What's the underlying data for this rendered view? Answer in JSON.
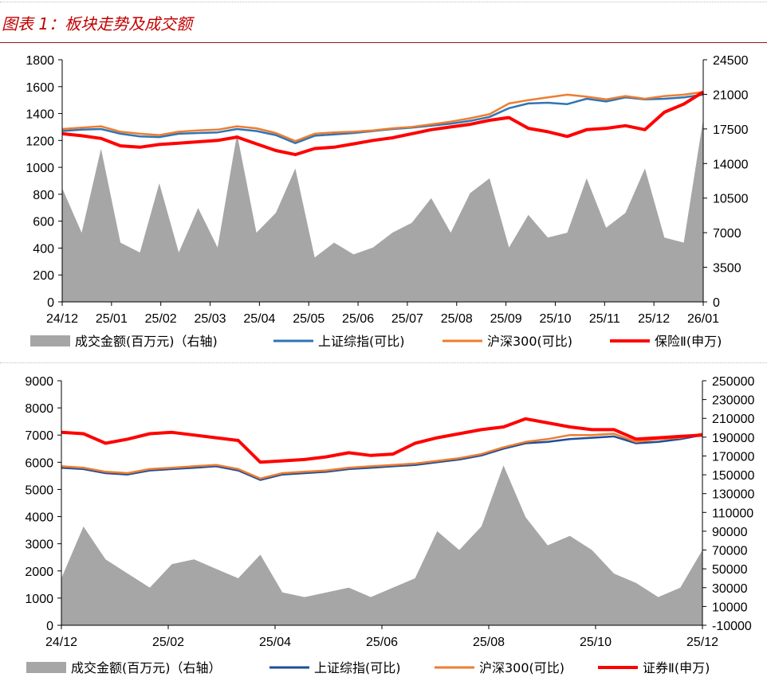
{
  "header": {
    "title": "图表 1：板块走势及成交额"
  },
  "colors": {
    "area": "#a6a6a6",
    "sh_index": "#2e75b6",
    "sh_index_b": "#1f4e9c",
    "csi300": "#ed7d31",
    "sector": "#ff0000",
    "title": "#c00000"
  },
  "chart_data": [
    {
      "type": "line",
      "title": "",
      "x_ticks": [
        "24/12",
        "25/01",
        "25/02",
        "25/03",
        "25/04",
        "25/05",
        "25/06",
        "25/07",
        "25/08",
        "25/09",
        "25/10",
        "25/11",
        "25/12",
        "26/01"
      ],
      "ylim_left": [
        0,
        1800
      ],
      "y_ticks_left": [
        "1800",
        "1600",
        "1400",
        "1200",
        "1000",
        "800",
        "600",
        "400",
        "200",
        "0"
      ],
      "ylim_right": [
        0,
        24500
      ],
      "y_ticks_right": [
        "24500",
        "21000",
        "17500",
        "14000",
        "10500",
        "7000",
        "3500",
        "0"
      ],
      "legend": [
        {
          "name": "成交金额(百万元)（右轴)",
          "kind": "area"
        },
        {
          "name": "上证综指(可比)",
          "kind": "line"
        },
        {
          "name": "沪深300(可比)",
          "kind": "line"
        },
        {
          "name": "保险Ⅱ(申万)",
          "kind": "line"
        }
      ],
      "series": [
        {
          "name": "上证综指(可比)",
          "axis": "left",
          "values": [
            1270,
            1280,
            1285,
            1250,
            1230,
            1225,
            1250,
            1255,
            1260,
            1285,
            1270,
            1240,
            1180,
            1235,
            1245,
            1255,
            1270,
            1285,
            1295,
            1310,
            1325,
            1345,
            1375,
            1440,
            1475,
            1480,
            1470,
            1510,
            1490,
            1520,
            1505,
            1510,
            1520,
            1540
          ]
        },
        {
          "name": "沪深300(可比)",
          "axis": "left",
          "values": [
            1285,
            1295,
            1305,
            1265,
            1250,
            1240,
            1265,
            1275,
            1280,
            1305,
            1290,
            1255,
            1195,
            1250,
            1260,
            1265,
            1275,
            1290,
            1300,
            1320,
            1340,
            1365,
            1395,
            1475,
            1500,
            1520,
            1540,
            1525,
            1505,
            1530,
            1510,
            1530,
            1540,
            1560
          ]
        },
        {
          "name": "保险Ⅱ(申万)",
          "axis": "left",
          "values": [
            1250,
            1235,
            1215,
            1160,
            1150,
            1170,
            1180,
            1190,
            1200,
            1225,
            1175,
            1125,
            1095,
            1140,
            1150,
            1175,
            1200,
            1220,
            1250,
            1280,
            1300,
            1320,
            1350,
            1370,
            1290,
            1265,
            1230,
            1280,
            1290,
            1310,
            1280,
            1410,
            1470,
            1560
          ]
        },
        {
          "name": "成交金额(百万元)（右轴)",
          "axis": "right",
          "values": [
            11500,
            7000,
            15500,
            6000,
            5000,
            12000,
            5000,
            9500,
            5500,
            17000,
            7000,
            9000,
            13500,
            4500,
            6000,
            4800,
            5500,
            7000,
            8000,
            10500,
            7000,
            11000,
            12500,
            5500,
            8800,
            6500,
            7000,
            12500,
            7500,
            9000,
            13500,
            6500,
            6000,
            18500
          ]
        }
      ]
    },
    {
      "type": "line",
      "title": "",
      "x_ticks": [
        "24/12",
        "25/02",
        "25/04",
        "25/06",
        "25/08",
        "25/10",
        "25/12"
      ],
      "ylim_left": [
        0,
        9000
      ],
      "y_ticks_left": [
        "9000",
        "8000",
        "7000",
        "6000",
        "5000",
        "4000",
        "3000",
        "2000",
        "1000",
        "0"
      ],
      "ylim_right": [
        -10000,
        250000
      ],
      "y_ticks_right": [
        "250000",
        "230000",
        "210000",
        "190000",
        "170000",
        "150000",
        "130000",
        "110000",
        "90000",
        "70000",
        "50000",
        "30000",
        "10000",
        "-10000"
      ],
      "legend": [
        {
          "name": "成交金额(百万元)（右轴）",
          "kind": "area"
        },
        {
          "name": "上证综指(可比)",
          "kind": "line"
        },
        {
          "name": "沪深300(可比)",
          "kind": "line"
        },
        {
          "name": "证券Ⅱ(申万)",
          "kind": "line"
        }
      ],
      "series": [
        {
          "name": "上证综指(可比)",
          "axis": "left",
          "values": [
            5800,
            5750,
            5600,
            5550,
            5700,
            5750,
            5800,
            5850,
            5700,
            5350,
            5550,
            5600,
            5650,
            5750,
            5800,
            5850,
            5900,
            6000,
            6100,
            6250,
            6500,
            6700,
            6750,
            6850,
            6900,
            6950,
            6700,
            6750,
            6850,
            7000
          ]
        },
        {
          "name": "沪深300(可比)",
          "axis": "left",
          "values": [
            5850,
            5800,
            5650,
            5600,
            5750,
            5800,
            5850,
            5900,
            5750,
            5400,
            5600,
            5650,
            5700,
            5800,
            5850,
            5900,
            5950,
            6050,
            6150,
            6300,
            6550,
            6750,
            6850,
            7000,
            7000,
            7050,
            6750,
            6850,
            6900,
            7050
          ]
        },
        {
          "name": "证券Ⅱ(申万)",
          "axis": "left",
          "values": [
            7100,
            7050,
            6700,
            6850,
            7050,
            7100,
            7000,
            6900,
            6800,
            6000,
            6050,
            6100,
            6200,
            6350,
            6250,
            6300,
            6700,
            6900,
            7050,
            7200,
            7300,
            7600,
            7450,
            7300,
            7200,
            7200,
            6850,
            6900,
            6950,
            7000
          ]
        },
        {
          "name": "成交金额(百万元)（右轴）",
          "axis": "right",
          "values": [
            40000,
            95000,
            60000,
            45000,
            30000,
            55000,
            60000,
            50000,
            40000,
            65000,
            25000,
            20000,
            25000,
            30000,
            20000,
            30000,
            40000,
            90000,
            70000,
            95000,
            160000,
            105000,
            75000,
            85000,
            70000,
            45000,
            35000,
            20000,
            30000,
            70000
          ]
        }
      ]
    }
  ]
}
